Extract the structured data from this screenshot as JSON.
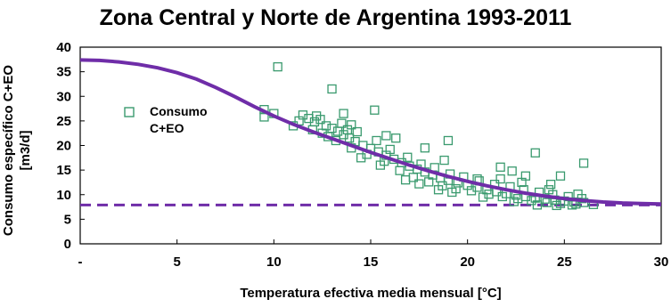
{
  "chart_data": {
    "type": "scatter",
    "title": "Zona Central y Norte de Argentina 1993-2011",
    "xlabel": "Temperatura efectiva media  mensual [°C]",
    "ylabel": [
      "Consumo específico C+EO",
      "[m3/d]"
    ],
    "xlim": [
      0,
      30
    ],
    "ylim": [
      0,
      40
    ],
    "xticks": [
      0,
      5,
      10,
      15,
      20,
      25,
      30
    ],
    "xtick_labels": [
      "-",
      "5",
      "10",
      "15",
      "20",
      "25",
      "30"
    ],
    "yticks": [
      0,
      5,
      10,
      15,
      20,
      25,
      30,
      35,
      40
    ],
    "ytick_labels": [
      "0",
      "5",
      "10",
      "15",
      "20",
      "25",
      "30",
      "35",
      "40"
    ],
    "grid": false,
    "legend": {
      "label": [
        "Consumo",
        "C+EO"
      ],
      "placement": "left"
    },
    "colors": {
      "scatter": "#3a9a6e",
      "fit": "#6f2da8",
      "baseline": "#6f2da8"
    },
    "series": [
      {
        "name": "Consumo C+EO",
        "kind": "scatter",
        "points": [
          [
            10.2,
            36
          ],
          [
            13.0,
            31.5
          ],
          [
            15.2,
            27.2
          ],
          [
            9.5,
            27.3
          ],
          [
            10.0,
            26.5
          ],
          [
            9.5,
            25.8
          ],
          [
            11.5,
            26.2
          ],
          [
            11.8,
            25.5
          ],
          [
            12.1,
            24.8
          ],
          [
            12.4,
            25.3
          ],
          [
            12.7,
            24.0
          ],
          [
            13.0,
            23.5
          ],
          [
            13.3,
            22.9
          ],
          [
            13.6,
            22.2
          ],
          [
            13.9,
            21.5
          ],
          [
            14.2,
            20.8
          ],
          [
            14.6,
            20.0
          ],
          [
            15.0,
            19.4
          ],
          [
            15.4,
            18.7
          ],
          [
            15.8,
            18.0
          ],
          [
            16.2,
            17.2
          ],
          [
            16.6,
            16.5
          ],
          [
            17.0,
            15.8
          ],
          [
            17.4,
            15.2
          ],
          [
            17.8,
            14.6
          ],
          [
            18.2,
            14.0
          ],
          [
            18.6,
            13.4
          ],
          [
            19.0,
            12.9
          ],
          [
            19.5,
            12.4
          ],
          [
            20.0,
            11.9
          ],
          [
            20.5,
            11.5
          ],
          [
            21.0,
            11.0
          ],
          [
            21.5,
            10.6
          ],
          [
            22.0,
            10.2
          ],
          [
            22.5,
            9.9
          ],
          [
            23.0,
            9.6
          ],
          [
            23.5,
            9.3
          ],
          [
            24.0,
            9.1
          ],
          [
            24.5,
            8.9
          ],
          [
            25.0,
            8.7
          ],
          [
            25.5,
            8.5
          ],
          [
            26.0,
            8.4
          ],
          [
            12.5,
            22.5
          ],
          [
            12.8,
            21.8
          ],
          [
            13.5,
            24.5
          ],
          [
            13.8,
            23.2
          ],
          [
            14.0,
            19.5
          ],
          [
            14.3,
            22.8
          ],
          [
            14.8,
            18.2
          ],
          [
            15.3,
            21.0
          ],
          [
            15.7,
            16.8
          ],
          [
            16.0,
            19.2
          ],
          [
            16.5,
            14.9
          ],
          [
            16.9,
            17.6
          ],
          [
            17.2,
            13.5
          ],
          [
            17.6,
            16.2
          ],
          [
            18.0,
            12.6
          ],
          [
            18.3,
            15.5
          ],
          [
            18.7,
            11.8
          ],
          [
            19.1,
            14.2
          ],
          [
            19.4,
            11.2
          ],
          [
            19.8,
            13.6
          ],
          [
            20.2,
            10.8
          ],
          [
            20.6,
            12.8
          ],
          [
            21.1,
            10.1
          ],
          [
            21.4,
            12.1
          ],
          [
            21.8,
            9.6
          ],
          [
            22.2,
            11.6
          ],
          [
            22.6,
            9.2
          ],
          [
            22.9,
            11.0
          ],
          [
            23.3,
            8.8
          ],
          [
            23.7,
            10.5
          ],
          [
            24.1,
            8.4
          ],
          [
            24.4,
            10.0
          ],
          [
            24.8,
            8.2
          ],
          [
            25.2,
            9.6
          ],
          [
            25.6,
            8.1
          ],
          [
            25.9,
            9.2
          ],
          [
            11.0,
            24.0
          ],
          [
            11.3,
            25.0
          ],
          [
            12.0,
            23.2
          ],
          [
            13.2,
            21.0
          ],
          [
            14.5,
            17.5
          ],
          [
            15.5,
            16.0
          ],
          [
            16.8,
            13.0
          ],
          [
            17.5,
            12.2
          ],
          [
            18.5,
            11.0
          ],
          [
            19.2,
            10.5
          ],
          [
            20.8,
            9.5
          ],
          [
            22.4,
            8.6
          ],
          [
            23.6,
            7.9
          ],
          [
            24.6,
            7.8
          ],
          [
            25.4,
            7.9
          ],
          [
            26.5,
            8.0
          ],
          [
            21.7,
            13.2
          ],
          [
            22.8,
            12.5
          ],
          [
            24.2,
            11.0
          ],
          [
            19.0,
            21.0
          ],
          [
            17.8,
            19.5
          ],
          [
            21.7,
            15.6
          ],
          [
            23.5,
            18.5
          ],
          [
            26.0,
            16.4
          ],
          [
            24.8,
            13.8
          ],
          [
            22.3,
            14.8
          ],
          [
            16.3,
            21.5
          ],
          [
            14.0,
            24.2
          ],
          [
            23.0,
            13.8
          ],
          [
            20.5,
            13.2
          ],
          [
            12.2,
            26.0
          ],
          [
            13.6,
            26.5
          ],
          [
            15.8,
            22.0
          ],
          [
            18.8,
            17.0
          ],
          [
            24.3,
            12.1
          ],
          [
            25.7,
            10.1
          ]
        ]
      },
      {
        "name": "fit",
        "kind": "line",
        "x": [
          0,
          1,
          2,
          3,
          4,
          5,
          6,
          7,
          8,
          9,
          10,
          11,
          12,
          13,
          14,
          15,
          16,
          17,
          18,
          19,
          20,
          21,
          22,
          23,
          24,
          25,
          26,
          27,
          28,
          29,
          30
        ],
        "y": [
          37.4,
          37.3,
          37.0,
          36.5,
          35.8,
          34.8,
          33.5,
          31.8,
          29.9,
          27.9,
          26.0,
          24.3,
          22.8,
          21.4,
          20.0,
          18.6,
          17.3,
          16.0,
          14.8,
          13.7,
          12.7,
          11.8,
          11.0,
          10.3,
          9.7,
          9.2,
          8.8,
          8.5,
          8.3,
          8.2,
          8.1
        ]
      },
      {
        "name": "baseline",
        "kind": "hline",
        "y": 7.9
      }
    ]
  }
}
